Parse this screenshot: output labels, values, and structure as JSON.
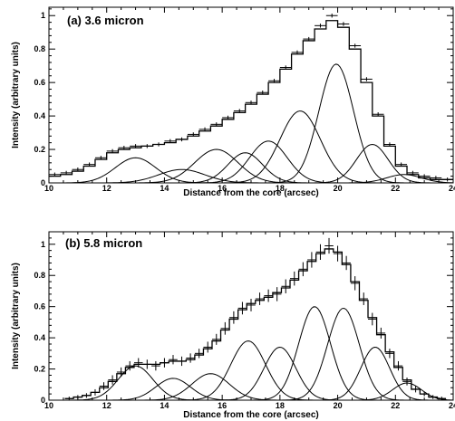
{
  "chart_data": [
    {
      "type": "line",
      "title": "(a) 3.6 micron",
      "xlabel": "Distance from the core (arcsec)",
      "ylabel": "Intensity (arbitrary units)",
      "xlim": [
        10,
        24
      ],
      "ylim": [
        0,
        1.05
      ],
      "xticks": [
        10,
        12,
        14,
        16,
        18,
        20,
        22,
        24
      ],
      "yticks": [
        0,
        0.2,
        0.4,
        0.6,
        0.8,
        1
      ],
      "series": [
        {
          "kind": "gaussian-components",
          "values": [
            {
              "center": 13.0,
              "amplitude": 0.15,
              "sigma": 0.7
            },
            {
              "center": 14.6,
              "amplitude": 0.08,
              "sigma": 0.8
            },
            {
              "center": 15.8,
              "amplitude": 0.2,
              "sigma": 0.75
            },
            {
              "center": 16.8,
              "amplitude": 0.18,
              "sigma": 0.6
            },
            {
              "center": 17.6,
              "amplitude": 0.25,
              "sigma": 0.65
            },
            {
              "center": 18.7,
              "amplitude": 0.43,
              "sigma": 0.7
            },
            {
              "center": 19.95,
              "amplitude": 0.71,
              "sigma": 0.6
            },
            {
              "center": 21.2,
              "amplitude": 0.23,
              "sigma": 0.55
            },
            {
              "center": 22.3,
              "amplitude": 0.05,
              "sigma": 0.6
            }
          ]
        },
        {
          "kind": "model-histogram",
          "x": [
            10.2,
            10.6,
            11.0,
            11.4,
            11.8,
            12.2,
            12.6,
            13.0,
            13.4,
            13.8,
            14.2,
            14.6,
            15.0,
            15.4,
            15.8,
            16.2,
            16.6,
            17.0,
            17.4,
            17.8,
            18.2,
            18.6,
            19.0,
            19.4,
            19.8,
            20.2,
            20.6,
            21.0,
            21.4,
            21.8,
            22.2,
            22.6,
            23.0,
            23.4,
            23.8
          ],
          "values": [
            0.04,
            0.05,
            0.07,
            0.1,
            0.14,
            0.18,
            0.2,
            0.21,
            0.22,
            0.23,
            0.24,
            0.26,
            0.28,
            0.31,
            0.34,
            0.38,
            0.42,
            0.47,
            0.53,
            0.6,
            0.68,
            0.77,
            0.85,
            0.92,
            0.97,
            0.93,
            0.8,
            0.6,
            0.4,
            0.22,
            0.1,
            0.05,
            0.03,
            0.02,
            0.02
          ]
        },
        {
          "kind": "data-points",
          "x": [
            10.2,
            10.6,
            11.0,
            11.4,
            11.8,
            12.2,
            12.6,
            13.0,
            13.4,
            13.8,
            14.2,
            14.6,
            15.0,
            15.4,
            15.8,
            16.2,
            16.6,
            17.0,
            17.4,
            17.8,
            18.2,
            18.6,
            19.0,
            19.4,
            19.8,
            20.2,
            20.6,
            21.0,
            21.4,
            21.8,
            22.2,
            22.6,
            23.0,
            23.4,
            23.8
          ],
          "values": [
            0.05,
            0.06,
            0.08,
            0.11,
            0.15,
            0.19,
            0.21,
            0.22,
            0.22,
            0.23,
            0.25,
            0.26,
            0.29,
            0.32,
            0.35,
            0.39,
            0.43,
            0.48,
            0.54,
            0.61,
            0.69,
            0.78,
            0.86,
            0.94,
            1.0,
            0.95,
            0.82,
            0.62,
            0.41,
            0.23,
            0.11,
            0.06,
            0.04,
            0.03,
            0.02
          ],
          "errors": [
            0.005,
            0.005,
            0.005,
            0.005,
            0.005,
            0.005,
            0.005,
            0.005,
            0.005,
            0.005,
            0.005,
            0.005,
            0.005,
            0.005,
            0.005,
            0.005,
            0.005,
            0.005,
            0.005,
            0.005,
            0.005,
            0.005,
            0.005,
            0.005,
            0.005,
            0.005,
            0.005,
            0.005,
            0.005,
            0.005,
            0.005,
            0.005,
            0.005,
            0.005,
            0.005
          ]
        }
      ]
    },
    {
      "type": "line",
      "title": "(b) 5.8 micron",
      "xlabel": "Distance from the core (arcsec)",
      "ylabel": "Intensity (arbitrary units)",
      "xlim": [
        10,
        24
      ],
      "ylim": [
        0,
        1.08
      ],
      "xticks": [
        10,
        12,
        14,
        16,
        18,
        20,
        22,
        24
      ],
      "yticks": [
        0,
        0.2,
        0.4,
        0.6,
        0.8,
        1
      ],
      "series": [
        {
          "kind": "gaussian-components",
          "values": [
            {
              "center": 13.0,
              "amplitude": 0.22,
              "sigma": 0.6
            },
            {
              "center": 14.3,
              "amplitude": 0.14,
              "sigma": 0.6
            },
            {
              "center": 15.6,
              "amplitude": 0.17,
              "sigma": 0.65
            },
            {
              "center": 16.9,
              "amplitude": 0.38,
              "sigma": 0.6
            },
            {
              "center": 18.0,
              "amplitude": 0.34,
              "sigma": 0.55
            },
            {
              "center": 19.2,
              "amplitude": 0.6,
              "sigma": 0.55
            },
            {
              "center": 20.2,
              "amplitude": 0.59,
              "sigma": 0.55
            },
            {
              "center": 21.3,
              "amplitude": 0.34,
              "sigma": 0.5
            },
            {
              "center": 22.4,
              "amplitude": 0.11,
              "sigma": 0.5
            }
          ]
        },
        {
          "kind": "model-histogram",
          "x": [
            10.7,
            11.0,
            11.3,
            11.6,
            11.9,
            12.2,
            12.5,
            12.8,
            13.1,
            13.4,
            13.7,
            14.0,
            14.3,
            14.6,
            14.9,
            15.2,
            15.5,
            15.8,
            16.1,
            16.4,
            16.7,
            17.0,
            17.3,
            17.6,
            17.9,
            18.2,
            18.5,
            18.8,
            19.1,
            19.4,
            19.7,
            20.0,
            20.3,
            20.6,
            20.9,
            21.2,
            21.5,
            21.8,
            22.1,
            22.4,
            22.7,
            23.0,
            23.3,
            23.6
          ],
          "values": [
            0.01,
            0.02,
            0.03,
            0.05,
            0.08,
            0.12,
            0.17,
            0.21,
            0.23,
            0.23,
            0.23,
            0.24,
            0.25,
            0.25,
            0.26,
            0.29,
            0.33,
            0.38,
            0.45,
            0.52,
            0.58,
            0.62,
            0.64,
            0.66,
            0.69,
            0.72,
            0.77,
            0.83,
            0.89,
            0.94,
            0.97,
            0.95,
            0.87,
            0.76,
            0.64,
            0.53,
            0.42,
            0.31,
            0.21,
            0.13,
            0.07,
            0.04,
            0.02,
            0.01
          ]
        },
        {
          "kind": "data-points",
          "x": [
            10.7,
            11.0,
            11.3,
            11.6,
            11.9,
            12.2,
            12.5,
            12.8,
            13.1,
            13.4,
            13.7,
            14.0,
            14.3,
            14.6,
            14.9,
            15.2,
            15.5,
            15.8,
            16.1,
            16.4,
            16.7,
            17.0,
            17.3,
            17.6,
            17.9,
            18.2,
            18.5,
            18.8,
            19.1,
            19.4,
            19.7,
            20.0,
            20.3,
            20.6,
            20.9,
            21.2,
            21.5,
            21.8,
            22.1,
            22.4,
            22.7,
            23.0,
            23.3,
            23.6
          ],
          "values": [
            0.01,
            0.02,
            0.03,
            0.05,
            0.09,
            0.13,
            0.18,
            0.22,
            0.24,
            0.23,
            0.22,
            0.24,
            0.26,
            0.25,
            0.27,
            0.3,
            0.34,
            0.39,
            0.46,
            0.53,
            0.59,
            0.61,
            0.65,
            0.67,
            0.68,
            0.73,
            0.78,
            0.84,
            0.9,
            0.95,
            0.99,
            0.94,
            0.88,
            0.75,
            0.65,
            0.52,
            0.43,
            0.3,
            0.22,
            0.12,
            0.07,
            0.04,
            0.02,
            0.01
          ],
          "errors": [
            0.01,
            0.01,
            0.015,
            0.02,
            0.025,
            0.03,
            0.03,
            0.03,
            0.03,
            0.03,
            0.03,
            0.03,
            0.03,
            0.03,
            0.03,
            0.03,
            0.035,
            0.035,
            0.04,
            0.04,
            0.04,
            0.04,
            0.04,
            0.04,
            0.045,
            0.045,
            0.045,
            0.045,
            0.05,
            0.05,
            0.05,
            0.05,
            0.045,
            0.045,
            0.04,
            0.04,
            0.035,
            0.03,
            0.03,
            0.025,
            0.02,
            0.015,
            0.01,
            0.01
          ]
        }
      ]
    }
  ]
}
